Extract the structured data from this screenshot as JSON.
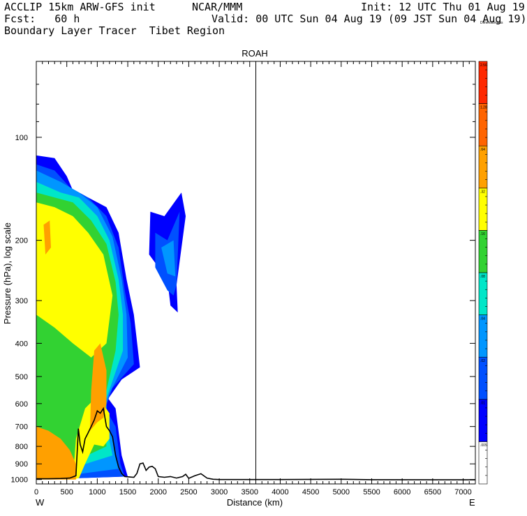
{
  "header": {
    "model": "ACCLIP 15km ARW-GFS init",
    "org": "NCAR/MMM",
    "init": "Init: 12 UTC Thu 01 Aug 19",
    "fcst": "Fcst:   60 h",
    "valid": "Valid: 00 UTC Sun 04 Aug 19 (09 JST Sun 04 Aug 19)",
    "field": "Boundary Layer Tracer  Tibet Region"
  },
  "chart_data": {
    "type": "heatmap",
    "title": "ROAH",
    "xlabel": "Distance (km)",
    "ylabel": "Pressure (hPa), log scale",
    "xlim": [
      0,
      7200
    ],
    "ylim": [
      1030,
      60
    ],
    "y_scale": "log",
    "x_ticks": [
      0,
      500,
      1000,
      1500,
      2000,
      2500,
      3000,
      3500,
      4000,
      4500,
      5000,
      5500,
      6000,
      6500,
      7000
    ],
    "y_ticks": [
      100,
      200,
      300,
      400,
      500,
      600,
      700,
      800,
      900,
      1000
    ],
    "x_end_labels": {
      "left": "W",
      "right": "E"
    },
    "marker_line_x": 3600,
    "colorbar": {
      "labels": [
        ".005",
        ".01",
        ".02",
        ".04",
        ".08",
        ".16",
        ".32",
        ".64",
        "1.28",
        "2.56",
        "Dimensionless"
      ],
      "colors": [
        "#ffffff",
        "#0000ff",
        "#0050ff",
        "#0096ff",
        "#00e6c8",
        "#32d232",
        "#ffff00",
        "#ffa000",
        "#ff6400",
        "#ff2800"
      ]
    },
    "terrain_km_hpa": [
      [
        0,
        995
      ],
      [
        200,
        995
      ],
      [
        400,
        993
      ],
      [
        550,
        990
      ],
      [
        650,
        975
      ],
      [
        690,
        710
      ],
      [
        720,
        790
      ],
      [
        760,
        830
      ],
      [
        800,
        760
      ],
      [
        850,
        730
      ],
      [
        900,
        700
      ],
      [
        950,
        670
      ],
      [
        1000,
        630
      ],
      [
        1050,
        640
      ],
      [
        1100,
        620
      ],
      [
        1150,
        700
      ],
      [
        1200,
        720
      ],
      [
        1250,
        750
      ],
      [
        1300,
        850
      ],
      [
        1350,
        920
      ],
      [
        1400,
        960
      ],
      [
        1450,
        980
      ],
      [
        1500,
        982
      ],
      [
        1600,
        985
      ],
      [
        1650,
        960
      ],
      [
        1700,
        900
      ],
      [
        1750,
        895
      ],
      [
        1800,
        940
      ],
      [
        1850,
        920
      ],
      [
        1900,
        915
      ],
      [
        1950,
        930
      ],
      [
        2000,
        980
      ],
      [
        2100,
        985
      ],
      [
        2200,
        980
      ],
      [
        2300,
        990
      ],
      [
        2400,
        980
      ],
      [
        2450,
        965
      ],
      [
        2500,
        992
      ],
      [
        2600,
        975
      ],
      [
        2700,
        962
      ],
      [
        2800,
        990
      ],
      [
        2900,
        998
      ],
      [
        3000,
        1000
      ],
      [
        4000,
        1000
      ],
      [
        5000,
        998
      ],
      [
        5500,
        1001
      ],
      [
        7200,
        1002
      ]
    ],
    "tracer_regions": [
      {
        "level": ".01",
        "points": [
          [
            0,
            1000
          ],
          [
            0,
            113
          ],
          [
            300,
            115
          ],
          [
            500,
            130
          ],
          [
            650,
            150
          ],
          [
            850,
            150
          ],
          [
            1150,
            160
          ],
          [
            1350,
            190
          ],
          [
            1480,
            260
          ],
          [
            1600,
            330
          ],
          [
            1700,
            470
          ],
          [
            1400,
            510
          ],
          [
            1180,
            580
          ],
          [
            1300,
            620
          ],
          [
            1400,
            850
          ],
          [
            1500,
            980
          ],
          [
            0,
            1000
          ]
        ]
      },
      {
        "level": ".01",
        "points": [
          [
            1870,
            165
          ],
          [
            2100,
            170
          ],
          [
            2380,
            145
          ],
          [
            2450,
            170
          ],
          [
            2300,
            270
          ],
          [
            2320,
            325
          ],
          [
            2200,
            310
          ],
          [
            2150,
            260
          ],
          [
            1850,
            220
          ],
          [
            1870,
            165
          ]
        ]
      },
      {
        "level": ".02",
        "points": [
          [
            0,
            1000
          ],
          [
            0,
            120
          ],
          [
            300,
            125
          ],
          [
            550,
            140
          ],
          [
            850,
            150
          ],
          [
            1150,
            170
          ],
          [
            1350,
            210
          ],
          [
            1450,
            280
          ],
          [
            1550,
            350
          ],
          [
            1600,
            460
          ],
          [
            1250,
            540
          ],
          [
            1130,
            620
          ],
          [
            1300,
            700
          ],
          [
            1380,
            900
          ],
          [
            1450,
            980
          ],
          [
            0,
            1000
          ]
        ]
      },
      {
        "level": ".02",
        "points": [
          [
            1950,
            190
          ],
          [
            2150,
            200
          ],
          [
            2350,
            165
          ],
          [
            2300,
            270
          ],
          [
            2250,
            290
          ],
          [
            2150,
            280
          ],
          [
            1950,
            240
          ],
          [
            1950,
            190
          ]
        ]
      },
      {
        "level": ".04",
        "points": [
          [
            0,
            1000
          ],
          [
            0,
            125
          ],
          [
            400,
            135
          ],
          [
            700,
            145
          ],
          [
            1000,
            160
          ],
          [
            1250,
            195
          ],
          [
            1400,
            260
          ],
          [
            1480,
            330
          ],
          [
            1500,
            440
          ],
          [
            1200,
            560
          ],
          [
            1100,
            640
          ],
          [
            1250,
            760
          ],
          [
            1350,
            930
          ],
          [
            0,
            1000
          ]
        ]
      },
      {
        "level": ".04",
        "points": [
          [
            2050,
            210
          ],
          [
            2250,
            200
          ],
          [
            2280,
            255
          ],
          [
            2150,
            250
          ],
          [
            2050,
            210
          ]
        ]
      },
      {
        "level": ".08",
        "points": [
          [
            0,
            1000
          ],
          [
            0,
            135
          ],
          [
            400,
            145
          ],
          [
            700,
            150
          ],
          [
            1000,
            170
          ],
          [
            1200,
            200
          ],
          [
            1350,
            260
          ],
          [
            1420,
            330
          ],
          [
            1420,
            420
          ],
          [
            1150,
            580
          ],
          [
            1150,
            700
          ],
          [
            1250,
            850
          ],
          [
            0,
            1000
          ]
        ]
      },
      {
        "level": ".16",
        "points": [
          [
            0,
            1000
          ],
          [
            0,
            145
          ],
          [
            300,
            150
          ],
          [
            600,
            155
          ],
          [
            900,
            175
          ],
          [
            1150,
            205
          ],
          [
            1300,
            265
          ],
          [
            1350,
            330
          ],
          [
            1300,
            420
          ],
          [
            1100,
            600
          ],
          [
            1150,
            800
          ],
          [
            0,
            1000
          ]
        ]
      },
      {
        "level": ".32",
        "points": [
          [
            0,
            1000
          ],
          [
            0,
            155
          ],
          [
            300,
            160
          ],
          [
            600,
            170
          ],
          [
            850,
            190
          ],
          [
            1100,
            220
          ],
          [
            1250,
            290
          ],
          [
            1150,
            400
          ],
          [
            900,
            440
          ],
          [
            600,
            400
          ],
          [
            300,
            360
          ],
          [
            0,
            330
          ]
        ]
      },
      {
        "level": ".32",
        "points": [
          [
            600,
            1000
          ],
          [
            650,
            760
          ],
          [
            800,
            620
          ],
          [
            1000,
            570
          ],
          [
            1200,
            640
          ],
          [
            1200,
            760
          ],
          [
            1100,
            800
          ],
          [
            950,
            790
          ],
          [
            800,
            900
          ],
          [
            700,
            990
          ]
        ]
      },
      {
        "level": ".64",
        "points": [
          [
            0,
            1000
          ],
          [
            0,
            700
          ],
          [
            200,
            720
          ],
          [
            400,
            760
          ],
          [
            550,
            820
          ],
          [
            650,
            900
          ],
          [
            650,
            1000
          ]
        ]
      },
      {
        "level": ".64",
        "points": [
          [
            880,
            720
          ],
          [
            900,
            550
          ],
          [
            950,
            420
          ],
          [
            1050,
            400
          ],
          [
            1150,
            480
          ],
          [
            1150,
            600
          ],
          [
            1100,
            660
          ],
          [
            1000,
            680
          ],
          [
            880,
            720
          ]
        ]
      },
      {
        "level": ".64",
        "points": [
          [
            120,
            180
          ],
          [
            220,
            175
          ],
          [
            240,
            210
          ],
          [
            150,
            220
          ],
          [
            120,
            180
          ]
        ]
      }
    ]
  }
}
